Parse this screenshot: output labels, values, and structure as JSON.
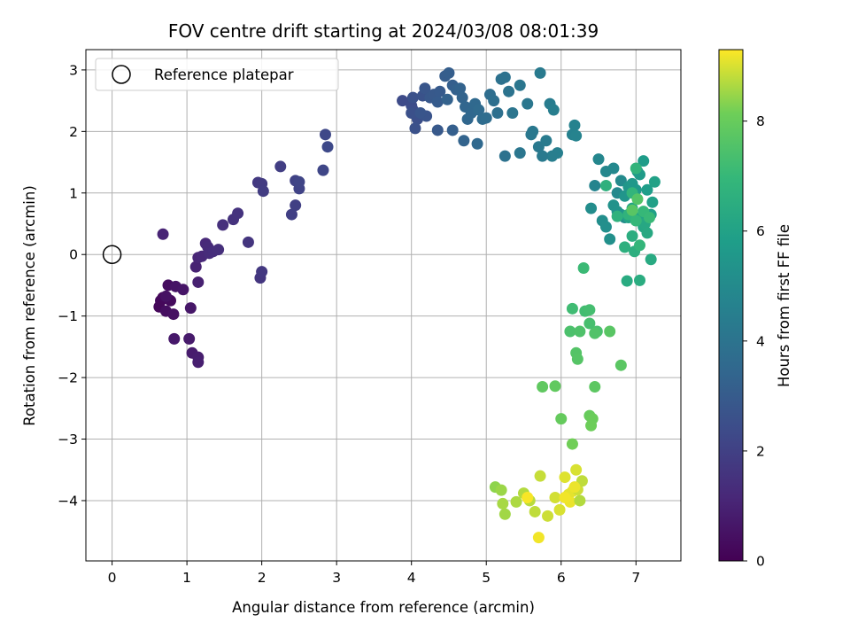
{
  "chart_data": {
    "type": "scatter",
    "title": "FOV centre drift starting at 2024/03/08 08:01:39",
    "xlabel": "Angular distance from reference (arcmin)",
    "ylabel": "Rotation from reference (arcmin)",
    "xlim": [
      -0.35,
      7.6
    ],
    "ylim": [
      -4.98,
      3.33
    ],
    "xticks": [
      0,
      1,
      2,
      3,
      4,
      5,
      6,
      7
    ],
    "yticks": [
      -4,
      -3,
      -2,
      -1,
      0,
      1,
      2,
      3
    ],
    "xtick_labels": [
      "0",
      "1",
      "2",
      "3",
      "4",
      "5",
      "6",
      "7"
    ],
    "ytick_labels": [
      "−4",
      "−3",
      "−2",
      "−1",
      "0",
      "1",
      "2",
      "3"
    ],
    "grid": true,
    "colormap": "viridis",
    "colorbar": {
      "label": "Hours from first FF file",
      "min": 0,
      "max": 9.3,
      "ticks": [
        0,
        2,
        4,
        6,
        8
      ],
      "tick_labels": [
        "0",
        "2",
        "4",
        "6",
        "8"
      ]
    },
    "legend": {
      "position": "top-left",
      "entries": [
        "Reference platepar"
      ]
    },
    "reference_point": {
      "x": 0,
      "y": 0
    },
    "points": [
      [
        0.68,
        -0.7,
        0.2
      ],
      [
        0.65,
        -0.75,
        0.25
      ],
      [
        0.78,
        -0.75,
        0.3
      ],
      [
        0.75,
        -0.5,
        0.35
      ],
      [
        0.63,
        -0.85,
        0.2
      ],
      [
        0.72,
        -0.92,
        0.4
      ],
      [
        0.82,
        -0.97,
        0.45
      ],
      [
        0.72,
        -0.68,
        0.5
      ],
      [
        0.85,
        -0.52,
        0.55
      ],
      [
        0.95,
        -0.57,
        0.6
      ],
      [
        1.05,
        -0.87,
        0.65
      ],
      [
        0.83,
        -1.37,
        0.7
      ],
      [
        1.03,
        -1.37,
        0.75
      ],
      [
        1.07,
        -1.6,
        0.8
      ],
      [
        1.15,
        -1.67,
        0.85
      ],
      [
        1.15,
        -1.75,
        0.9
      ],
      [
        1.15,
        -0.45,
        0.95
      ],
      [
        1.12,
        -0.2,
        1.0
      ],
      [
        0.68,
        0.33,
        1.05
      ],
      [
        1.15,
        -0.05,
        1.1
      ],
      [
        1.2,
        -0.03,
        1.15
      ],
      [
        1.25,
        0.18,
        1.2
      ],
      [
        1.28,
        0.12,
        1.25
      ],
      [
        1.3,
        0.02,
        1.3
      ],
      [
        1.35,
        0.05,
        1.35
      ],
      [
        1.42,
        0.08,
        1.4
      ],
      [
        1.48,
        0.48,
        1.45
      ],
      [
        1.62,
        0.57,
        1.5
      ],
      [
        1.68,
        0.67,
        1.55
      ],
      [
        1.82,
        0.2,
        1.6
      ],
      [
        1.98,
        -0.38,
        1.65
      ],
      [
        2.0,
        -0.28,
        1.7
      ],
      [
        1.95,
        1.17,
        1.75
      ],
      [
        2.0,
        1.15,
        1.8
      ],
      [
        2.02,
        1.03,
        1.85
      ],
      [
        2.25,
        1.43,
        1.9
      ],
      [
        2.4,
        0.65,
        1.95
      ],
      [
        2.45,
        0.8,
        2.0
      ],
      [
        2.45,
        1.2,
        2.05
      ],
      [
        2.5,
        1.07,
        2.1
      ],
      [
        2.5,
        1.18,
        2.15
      ],
      [
        2.82,
        1.37,
        2.2
      ],
      [
        2.85,
        1.95,
        2.25
      ],
      [
        2.88,
        1.75,
        2.3
      ],
      [
        3.88,
        2.5,
        2.35
      ],
      [
        4.0,
        2.42,
        2.4
      ],
      [
        4.02,
        2.35,
        2.45
      ],
      [
        4.08,
        2.2,
        2.5
      ],
      [
        4.0,
        2.3,
        2.55
      ],
      [
        4.02,
        2.55,
        2.6
      ],
      [
        4.15,
        2.58,
        2.65
      ],
      [
        4.2,
        2.25,
        2.7
      ],
      [
        4.12,
        2.3,
        2.75
      ],
      [
        4.18,
        2.7,
        2.8
      ],
      [
        4.25,
        2.55,
        2.85
      ],
      [
        4.3,
        2.6,
        2.9
      ],
      [
        4.38,
        2.65,
        2.95
      ],
      [
        4.35,
        2.48,
        3.0
      ],
      [
        4.45,
        2.9,
        3.05
      ],
      [
        4.5,
        2.95,
        3.1
      ],
      [
        4.55,
        2.75,
        3.15
      ],
      [
        4.6,
        2.68,
        3.2
      ],
      [
        4.48,
        2.52,
        3.25
      ],
      [
        4.65,
        2.7,
        3.3
      ],
      [
        4.68,
        2.55,
        3.35
      ],
      [
        4.72,
        2.4,
        3.4
      ],
      [
        4.75,
        2.2,
        3.45
      ],
      [
        4.8,
        2.3,
        3.5
      ],
      [
        4.85,
        2.45,
        3.55
      ],
      [
        4.9,
        2.35,
        3.6
      ],
      [
        4.95,
        2.2,
        3.65
      ],
      [
        5.0,
        2.22,
        3.7
      ],
      [
        5.05,
        2.6,
        3.75
      ],
      [
        5.1,
        2.5,
        3.8
      ],
      [
        5.15,
        2.3,
        3.85
      ],
      [
        5.2,
        2.85,
        3.9
      ],
      [
        5.25,
        2.88,
        3.95
      ],
      [
        5.3,
        2.65,
        4.0
      ],
      [
        5.35,
        2.3,
        4.05
      ],
      [
        5.45,
        2.75,
        4.1
      ],
      [
        5.55,
        2.45,
        4.15
      ],
      [
        5.62,
        2.0,
        4.2
      ],
      [
        5.7,
        1.75,
        4.25
      ],
      [
        5.72,
        2.95,
        4.3
      ],
      [
        5.8,
        1.85,
        4.35
      ],
      [
        5.85,
        2.45,
        4.4
      ],
      [
        5.9,
        2.35,
        4.45
      ],
      [
        5.95,
        1.65,
        4.5
      ],
      [
        4.05,
        2.05,
        2.6
      ],
      [
        4.35,
        2.02,
        2.9
      ],
      [
        4.55,
        2.02,
        3.15
      ],
      [
        4.7,
        1.85,
        3.35
      ],
      [
        4.88,
        1.8,
        3.55
      ],
      [
        5.25,
        1.6,
        3.95
      ],
      [
        5.45,
        1.65,
        4.1
      ],
      [
        5.6,
        1.95,
        4.2
      ],
      [
        5.88,
        1.6,
        4.45
      ],
      [
        5.75,
        1.6,
        4.3
      ],
      [
        6.15,
        1.95,
        4.6
      ],
      [
        6.18,
        2.1,
        4.65
      ],
      [
        6.2,
        1.93,
        4.7
      ],
      [
        6.45,
        1.12,
        4.75
      ],
      [
        6.5,
        1.55,
        4.8
      ],
      [
        6.6,
        1.35,
        4.85
      ],
      [
        6.7,
        1.4,
        4.9
      ],
      [
        6.75,
        1.0,
        4.95
      ],
      [
        6.8,
        1.2,
        5.0
      ],
      [
        6.85,
        0.6,
        5.05
      ],
      [
        6.4,
        0.75,
        5.1
      ],
      [
        6.55,
        0.55,
        5.15
      ],
      [
        6.6,
        0.45,
        5.2
      ],
      [
        6.65,
        0.25,
        5.25
      ],
      [
        6.7,
        0.8,
        5.3
      ],
      [
        6.75,
        0.7,
        5.35
      ],
      [
        6.8,
        0.65,
        5.4
      ],
      [
        6.85,
        0.95,
        5.45
      ],
      [
        6.9,
        1.1,
        5.5
      ],
      [
        6.95,
        1.15,
        5.55
      ],
      [
        7.0,
        1.05,
        5.6
      ],
      [
        7.02,
        1.35,
        5.65
      ],
      [
        7.05,
        1.3,
        5.7
      ],
      [
        7.1,
        1.52,
        5.75
      ],
      [
        7.15,
        1.05,
        5.8
      ],
      [
        7.2,
        0.65,
        5.85
      ],
      [
        7.22,
        0.85,
        5.9
      ],
      [
        7.25,
        1.18,
        5.95
      ],
      [
        6.9,
        0.6,
        6.0
      ],
      [
        6.95,
        0.75,
        6.05
      ],
      [
        7.0,
        0.55,
        6.1
      ],
      [
        7.05,
        0.6,
        6.15
      ],
      [
        7.1,
        0.45,
        6.2
      ],
      [
        7.12,
        0.5,
        6.25
      ],
      [
        7.15,
        0.35,
        6.3
      ],
      [
        7.2,
        -0.08,
        6.35
      ],
      [
        6.88,
        -0.43,
        6.4
      ],
      [
        7.05,
        -0.42,
        6.45
      ],
      [
        6.95,
        0.3,
        6.5
      ],
      [
        6.98,
        0.05,
        6.55
      ],
      [
        6.85,
        0.12,
        6.6
      ],
      [
        6.6,
        1.12,
        6.65
      ],
      [
        6.75,
        0.62,
        6.7
      ],
      [
        6.9,
        0.65,
        6.75
      ],
      [
        7.0,
        1.4,
        6.8
      ],
      [
        6.95,
        1.0,
        6.85
      ],
      [
        7.05,
        0.15,
        6.9
      ],
      [
        7.0,
        0.55,
        6.95
      ],
      [
        7.1,
        0.7,
        7.0
      ],
      [
        7.18,
        0.6,
        7.05
      ],
      [
        6.3,
        -0.22,
        7.1
      ],
      [
        6.15,
        -0.88,
        7.2
      ],
      [
        6.32,
        -0.92,
        7.25
      ],
      [
        6.38,
        -0.9,
        7.3
      ],
      [
        6.38,
        -1.12,
        7.35
      ],
      [
        6.48,
        -1.25,
        7.4
      ],
      [
        6.12,
        -1.25,
        7.45
      ],
      [
        6.25,
        -1.25,
        7.5
      ],
      [
        6.45,
        -1.28,
        7.55
      ],
      [
        6.2,
        -1.6,
        7.6
      ],
      [
        6.22,
        -1.7,
        7.65
      ],
      [
        6.65,
        -1.25,
        7.7
      ],
      [
        6.8,
        -1.8,
        7.75
      ],
      [
        6.45,
        -2.15,
        7.8
      ],
      [
        5.75,
        -2.15,
        7.85
      ],
      [
        5.92,
        -2.14,
        7.9
      ],
      [
        6.0,
        -2.67,
        7.95
      ],
      [
        6.38,
        -2.62,
        8.0
      ],
      [
        6.42,
        -2.67,
        8.05
      ],
      [
        6.4,
        -2.78,
        8.1
      ],
      [
        6.15,
        -3.08,
        8.15
      ],
      [
        7.02,
        0.9,
        7.6
      ],
      [
        6.95,
        0.72,
        7.7
      ],
      [
        5.12,
        -3.78,
        8.4
      ],
      [
        5.2,
        -3.83,
        8.5
      ],
      [
        5.25,
        -4.22,
        8.55
      ],
      [
        5.22,
        -4.05,
        8.6
      ],
      [
        5.4,
        -4.02,
        8.65
      ],
      [
        5.5,
        -3.88,
        8.7
      ],
      [
        5.58,
        -4.0,
        8.75
      ],
      [
        5.65,
        -4.18,
        8.8
      ],
      [
        5.72,
        -3.6,
        8.85
      ],
      [
        5.82,
        -4.25,
        8.9
      ],
      [
        5.92,
        -3.95,
        8.95
      ],
      [
        5.98,
        -4.15,
        9.0
      ],
      [
        6.05,
        -3.62,
        9.05
      ],
      [
        6.1,
        -3.9,
        9.1
      ],
      [
        6.12,
        -4.02,
        9.15
      ],
      [
        6.15,
        -3.85,
        9.1
      ],
      [
        6.2,
        -3.5,
        9.0
      ],
      [
        6.22,
        -3.82,
        8.9
      ],
      [
        6.28,
        -3.68,
        8.8
      ],
      [
        6.25,
        -4.0,
        8.7
      ],
      [
        5.7,
        -4.6,
        9.2
      ],
      [
        5.55,
        -3.95,
        9.25
      ],
      [
        6.05,
        -3.95,
        9.2
      ],
      [
        6.18,
        -3.78,
        9.15
      ]
    ]
  }
}
